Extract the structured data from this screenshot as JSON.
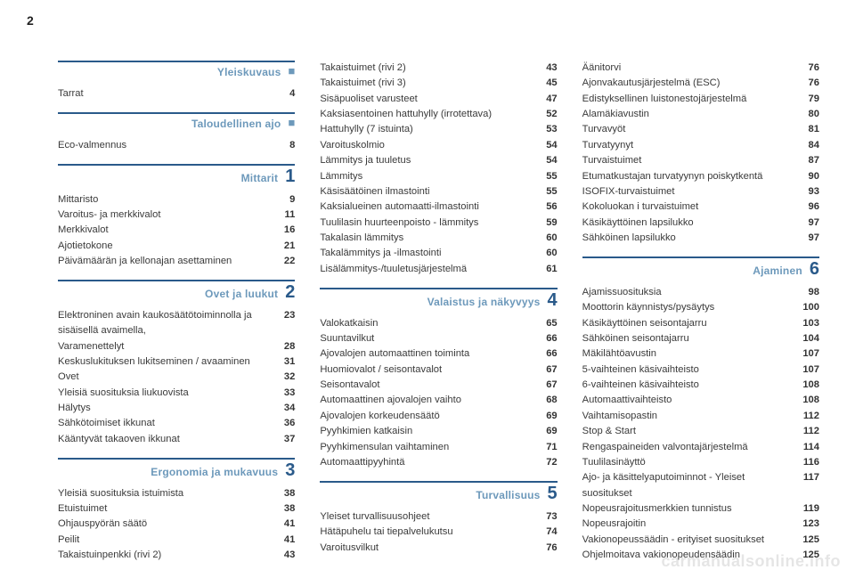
{
  "page_number": "2",
  "watermark": "carmanualsonline.info",
  "columns": [
    {
      "sections": [
        {
          "title": "Yleiskuvaus",
          "marker": "square",
          "rows": [
            {
              "label": "Tarrat",
              "page": "4"
            }
          ]
        },
        {
          "title": "Taloudellinen ajo",
          "marker": "square",
          "rows": [
            {
              "label": "Eco-valmennus",
              "page": "8"
            }
          ]
        },
        {
          "title": "Mittarit",
          "marker": "1",
          "rows": [
            {
              "label": "Mittaristo",
              "page": "9"
            },
            {
              "label": "Varoitus- ja merkkivalot",
              "page": "11"
            },
            {
              "label": "Merkkivalot",
              "page": "16"
            },
            {
              "label": "Ajotietokone",
              "page": "21"
            },
            {
              "label": "Päivämäärän ja kellonajan asettaminen",
              "page": "22"
            }
          ]
        },
        {
          "title": "Ovet ja luukut",
          "marker": "2",
          "rows": [
            {
              "label": "Elektroninen avain kaukosäätötoiminnolla ja sisäisellä avaimella,",
              "page": "23"
            },
            {
              "label": "Varamenettelyt",
              "page": "28"
            },
            {
              "label": "Keskuslukituksen lukitseminen / avaaminen",
              "page": "31"
            },
            {
              "label": "Ovet",
              "page": "32"
            },
            {
              "label": "Yleisiä suosituksia liukuovista",
              "page": "33"
            },
            {
              "label": "Hälytys",
              "page": "34"
            },
            {
              "label": "Sähkötoimiset ikkunat",
              "page": "36"
            },
            {
              "label": "Kääntyvät takaoven ikkunat",
              "page": "37"
            }
          ]
        },
        {
          "title": "Ergonomia ja mukavuus",
          "marker": "3",
          "rows": [
            {
              "label": "Yleisiä suosituksia istuimista",
              "page": "38"
            },
            {
              "label": "Etuistuimet",
              "page": "38"
            },
            {
              "label": "Ohjauspyörän säätö",
              "page": "41"
            },
            {
              "label": "Peilit",
              "page": "41"
            },
            {
              "label": "Takaistuinpenkki (rivi 2)",
              "page": "43"
            }
          ]
        }
      ]
    },
    {
      "sections": [
        {
          "title": null,
          "marker": null,
          "rows": [
            {
              "label": "Takaistuimet (rivi 2)",
              "page": "43"
            },
            {
              "label": "Takaistuimet (rivi 3)",
              "page": "45"
            },
            {
              "label": "Sisäpuoliset varusteet",
              "page": "47"
            },
            {
              "label": "Kaksiasentoinen hattuhylly (irrotettava)",
              "page": "52"
            },
            {
              "label": "Hattuhylly (7 istuinta)",
              "page": "53"
            },
            {
              "label": "Varoituskolmio",
              "page": "54"
            },
            {
              "label": "Lämmitys ja tuuletus",
              "page": "54"
            },
            {
              "label": "Lämmitys",
              "page": "55"
            },
            {
              "label": "Käsisäätöinen ilmastointi",
              "page": "55"
            },
            {
              "label": "Kaksialueinen automaatti-ilmastointi",
              "page": "56"
            },
            {
              "label": "Tuulilasin huurteenpoisto - lämmitys",
              "page": "59"
            },
            {
              "label": "Takalasin lämmitys",
              "page": "60"
            },
            {
              "label": "Takalämmitys ja -ilmastointi",
              "page": "60"
            },
            {
              "label": "Lisälämmitys-/tuuletusjärjestelmä",
              "page": "61"
            }
          ]
        },
        {
          "title": "Valaistus ja näkyvyys",
          "marker": "4",
          "rows": [
            {
              "label": "Valokatkaisin",
              "page": "65"
            },
            {
              "label": "Suuntavilkut",
              "page": "66"
            },
            {
              "label": "Ajovalojen automaattinen toiminta",
              "page": "66"
            },
            {
              "label": "Huomiovalot / seisontavalot",
              "page": "67"
            },
            {
              "label": "Seisontavalot",
              "page": "67"
            },
            {
              "label": "Automaattinen ajovalojen vaihto",
              "page": "68"
            },
            {
              "label": "Ajovalojen korkeudensäätö",
              "page": "69"
            },
            {
              "label": "Pyyhkimien katkaisin",
              "page": "69"
            },
            {
              "label": "Pyyhkimensulan vaihtaminen",
              "page": "71"
            },
            {
              "label": "Automaattipyyhintä",
              "page": "72"
            }
          ]
        },
        {
          "title": "Turvallisuus",
          "marker": "5",
          "rows": [
            {
              "label": "Yleiset turvallisuusohjeet",
              "page": "73"
            },
            {
              "label": "Hätäpuhelu tai tiepalvelukutsu",
              "page": "74"
            },
            {
              "label": "Varoitusvilkut",
              "page": "76"
            }
          ]
        }
      ]
    },
    {
      "sections": [
        {
          "title": null,
          "marker": null,
          "rows": [
            {
              "label": "Äänitorvi",
              "page": "76"
            },
            {
              "label": "Ajonvakautusjärjestelmä (ESC)",
              "page": "76"
            },
            {
              "label": "Edistyksellinen luistonestojärjestelmä",
              "page": "79"
            },
            {
              "label": "Alamäkiavustin",
              "page": "80"
            },
            {
              "label": "Turvavyöt",
              "page": "81"
            },
            {
              "label": "Turvatyynyt",
              "page": "84"
            },
            {
              "label": "Turvaistuimet",
              "page": "87"
            },
            {
              "label": "Etumatkustajan turvatyynyn poiskytkentä",
              "page": "90"
            },
            {
              "label": "ISOFIX-turvaistuimet",
              "page": "93"
            },
            {
              "label": "Kokoluokan i turvaistuimet",
              "page": "96"
            },
            {
              "label": "Käsikäyttöinen lapsilukko",
              "page": "97"
            },
            {
              "label": "Sähköinen lapsilukko",
              "page": "97"
            }
          ]
        },
        {
          "title": "Ajaminen",
          "marker": "6",
          "rows": [
            {
              "label": "Ajamissuosituksia",
              "page": "98"
            },
            {
              "label": "Moottorin käynnistys/pysäytys",
              "page": "100"
            },
            {
              "label": "Käsikäyttöinen seisontajarru",
              "page": "103"
            },
            {
              "label": "Sähköinen seisontajarru",
              "page": "104"
            },
            {
              "label": "Mäkilähtöavustin",
              "page": "107"
            },
            {
              "label": "5-vaihteinen käsivaihteisto",
              "page": "107"
            },
            {
              "label": "6-vaihteinen käsivaihteisto",
              "page": "108"
            },
            {
              "label": "Automaattivaihteisto",
              "page": "108"
            },
            {
              "label": "Vaihtamisopastin",
              "page": "112"
            },
            {
              "label": "Stop & Start",
              "page": "112"
            },
            {
              "label": "Rengaspaineiden valvontajärjestelmä",
              "page": "114"
            },
            {
              "label": "Tuulilasinäyttö",
              "page": "116"
            },
            {
              "label": "Ajo- ja käsittelyaputoiminnot - Yleiset suositukset",
              "page": "117"
            },
            {
              "label": "Nopeusrajoitusmerkkien tunnistus",
              "page": "119"
            },
            {
              "label": "Nopeusrajoitin",
              "page": "123"
            },
            {
              "label": "Vakionopeussäädin - erityiset suositukset",
              "page": "125"
            },
            {
              "label": "Ohjelmoitava vakionopeudensäädin",
              "page": "125"
            }
          ]
        }
      ]
    }
  ]
}
